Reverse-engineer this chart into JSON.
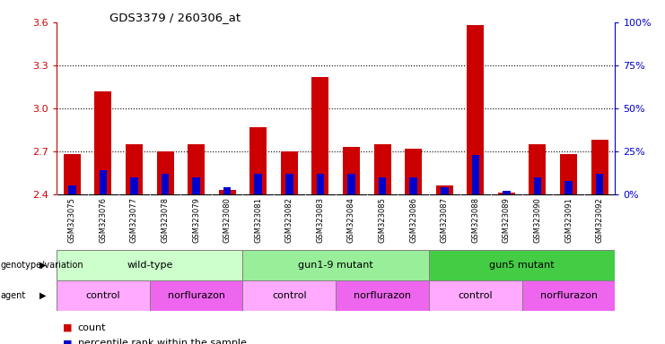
{
  "title": "GDS3379 / 260306_at",
  "samples": [
    "GSM323075",
    "GSM323076",
    "GSM323077",
    "GSM323078",
    "GSM323079",
    "GSM323080",
    "GSM323081",
    "GSM323082",
    "GSM323083",
    "GSM323084",
    "GSM323085",
    "GSM323086",
    "GSM323087",
    "GSM323088",
    "GSM323089",
    "GSM323090",
    "GSM323091",
    "GSM323092"
  ],
  "count_values": [
    2.68,
    3.12,
    2.75,
    2.7,
    2.75,
    2.43,
    2.87,
    2.7,
    3.22,
    2.73,
    2.75,
    2.72,
    2.46,
    3.58,
    2.41,
    2.75,
    2.68,
    2.78
  ],
  "percentile_values": [
    5,
    14,
    10,
    12,
    10,
    4,
    12,
    12,
    12,
    12,
    10,
    10,
    4,
    23,
    2,
    10,
    8,
    12
  ],
  "ylim_left": [
    2.4,
    3.6
  ],
  "ylim_right": [
    0,
    100
  ],
  "yticks_left": [
    2.4,
    2.7,
    3.0,
    3.3,
    3.6
  ],
  "yticks_right": [
    0,
    25,
    50,
    75,
    100
  ],
  "bar_color_red": "#cc0000",
  "bar_color_blue": "#0000cc",
  "base_value": 2.4,
  "genotype_groups": [
    {
      "label": "wild-type",
      "start": 0,
      "end": 6,
      "color": "#ccffcc"
    },
    {
      "label": "gun1-9 mutant",
      "start": 6,
      "end": 12,
      "color": "#99ee99"
    },
    {
      "label": "gun5 mutant",
      "start": 12,
      "end": 18,
      "color": "#44cc44"
    }
  ],
  "agent_groups": [
    {
      "label": "control",
      "start": 0,
      "end": 3,
      "color": "#ffaaff"
    },
    {
      "label": "norflurazon",
      "start": 3,
      "end": 6,
      "color": "#ee66ee"
    },
    {
      "label": "control",
      "start": 6,
      "end": 9,
      "color": "#ffaaff"
    },
    {
      "label": "norflurazon",
      "start": 9,
      "end": 12,
      "color": "#ee66ee"
    },
    {
      "label": "control",
      "start": 12,
      "end": 15,
      "color": "#ffaaff"
    },
    {
      "label": "norflurazon",
      "start": 15,
      "end": 18,
      "color": "#ee66ee"
    }
  ],
  "ylabel_left_color": "#cc0000",
  "ylabel_right_color": "#0000cc",
  "tick_label_bg": "#dddddd"
}
